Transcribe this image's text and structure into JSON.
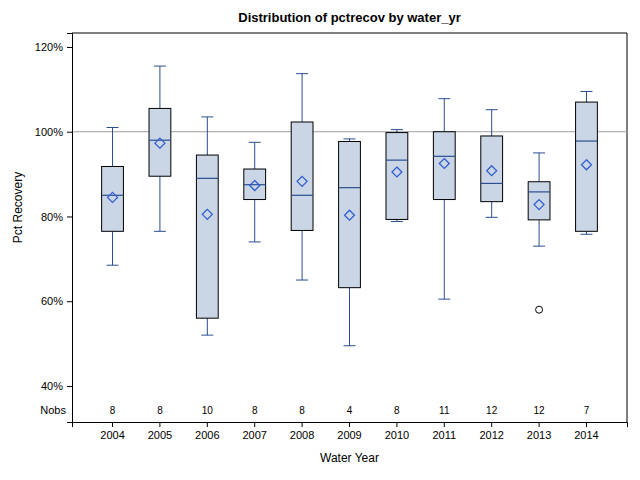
{
  "chart_data": {
    "type": "box",
    "title": "Distribution of pctrecov by water_yr",
    "x_label": "Water Year",
    "y_label": "Pct Recovery",
    "categories": [
      "2004",
      "2005",
      "2006",
      "2007",
      "2008",
      "2009",
      "2010",
      "2011",
      "2012",
      "2013",
      "2014"
    ],
    "min": [
      68.5,
      76.5,
      52.0,
      74.0,
      65.0,
      49.5,
      78.8,
      60.5,
      79.8,
      73.0,
      75.8
    ],
    "q1": [
      76.5,
      89.5,
      56.0,
      84.0,
      76.7,
      63.2,
      79.3,
      84.0,
      83.5,
      79.2,
      76.5
    ],
    "median": [
      85.0,
      98.0,
      89.0,
      87.5,
      85.0,
      86.8,
      93.3,
      94.2,
      87.8,
      85.8,
      97.8
    ],
    "q3": [
      91.8,
      105.5,
      94.5,
      91.2,
      102.3,
      97.7,
      99.8,
      100.0,
      99.0,
      88.2,
      107.0
    ],
    "max": [
      101.0,
      115.5,
      103.5,
      97.5,
      113.7,
      98.3,
      100.5,
      107.8,
      105.2,
      95.0,
      109.5
    ],
    "mean": [
      84.5,
      97.3,
      80.5,
      87.3,
      88.3,
      80.3,
      90.5,
      92.5,
      90.8,
      82.8,
      92.2
    ],
    "outliers": [
      [],
      [],
      [],
      [],
      [],
      [],
      [],
      [],
      [],
      [
        58.0
      ],
      []
    ],
    "nobs_label": "Nobs",
    "nobs": [
      8,
      8,
      10,
      8,
      8,
      4,
      8,
      11,
      12,
      12,
      7
    ],
    "reference_line": 100,
    "color": "#cad5e5",
    "ylim": [
      31.5,
      123.3
    ],
    "yticks": [
      {
        "value": 40,
        "label": "40%"
      },
      {
        "value": 60,
        "label": "60%"
      },
      {
        "value": 80,
        "label": "80%"
      },
      {
        "value": 100,
        "label": "100%"
      },
      {
        "value": 120,
        "label": "120%"
      }
    ]
  }
}
